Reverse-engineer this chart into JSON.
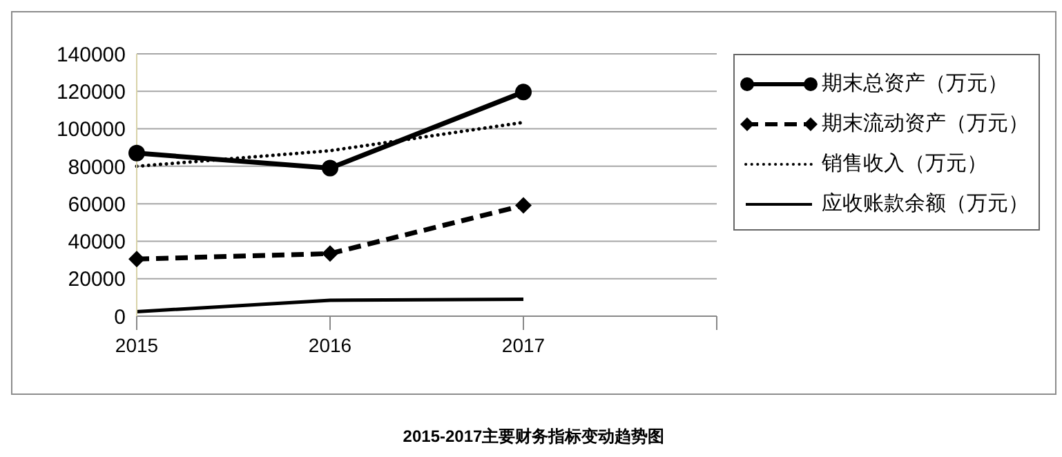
{
  "chart_data": {
    "type": "line",
    "title": "2015-2017主要财务指标变动趋势图",
    "categories": [
      "2015",
      "2016",
      "2017",
      null
    ],
    "series": [
      {
        "name": "期末总资产（万元）",
        "color": "#000000",
        "values": [
          87000,
          79000,
          119600,
          null
        ],
        "marker": "circle",
        "line_style": "solid"
      },
      {
        "name": "期末流动资产（万元）",
        "color": "#000000",
        "values": [
          30500,
          33400,
          59100,
          null
        ],
        "marker": "diamond",
        "line_style": "dashed"
      },
      {
        "name": "销售收入（万元）",
        "color": "#000000",
        "values": [
          80000,
          88300,
          103400,
          null
        ],
        "marker": "none",
        "line_style": "dotted"
      },
      {
        "name": "应收账款余额（万元）",
        "color": "#000000",
        "values": [
          2400,
          8500,
          9000,
          null
        ],
        "marker": "none",
        "line_style": "solid"
      }
    ],
    "ylim": [
      0,
      140000
    ],
    "yticks": [
      0,
      20000,
      40000,
      60000,
      80000,
      100000,
      120000,
      140000
    ],
    "grid": "y",
    "legend": "right"
  }
}
